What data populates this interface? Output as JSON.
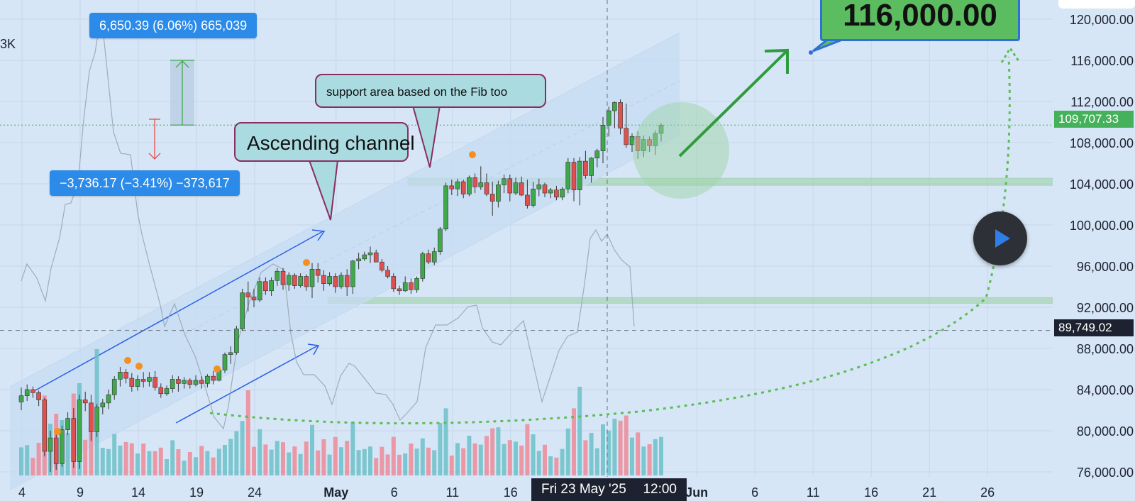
{
  "chart_data": {
    "type": "candlestick",
    "y_axis_ticks": [
      "76,000.00",
      "80,000.00",
      "84,000.00",
      "88,000.00",
      "92,000.00",
      "96,000.00",
      "100,000.00",
      "104,000.00",
      "108,000.00",
      "112,000.00",
      "116,000.00",
      "120,000.00"
    ],
    "ylim": [
      75800,
      121000
    ],
    "x_axis_ticks": [
      {
        "label": "4",
        "day": 0
      },
      {
        "label": "9",
        "day": 5
      },
      {
        "label": "14",
        "day": 10
      },
      {
        "label": "19",
        "day": 15
      },
      {
        "label": "24",
        "day": 20
      },
      {
        "label": "May",
        "day": 27,
        "bold": true
      },
      {
        "label": "6",
        "day": 32
      },
      {
        "label": "11",
        "day": 37
      },
      {
        "label": "16",
        "day": 42
      },
      {
        "label": "Jun",
        "day": 58,
        "bold": true
      },
      {
        "label": "6",
        "day": 63
      },
      {
        "label": "11",
        "day": 68
      },
      {
        "label": "16",
        "day": 73
      },
      {
        "label": "21",
        "day": 78
      },
      {
        "label": "26",
        "day": 83
      }
    ],
    "candles": [
      [
        82800,
        84200,
        82000,
        83400
      ],
      [
        83400,
        84500,
        82900,
        84000
      ],
      [
        84000,
        84300,
        83200,
        83700
      ],
      [
        83700,
        83900,
        82400,
        83000
      ],
      [
        83000,
        83200,
        77500,
        78000
      ],
      [
        78000,
        80000,
        76000,
        79300
      ],
      [
        79300,
        80200,
        76200,
        76800
      ],
      [
        76800,
        80500,
        76500,
        80100
      ],
      [
        80100,
        81800,
        79600,
        81200
      ],
      [
        81200,
        82200,
        76400,
        77000
      ],
      [
        77000,
        83500,
        76300,
        83000
      ],
      [
        83000,
        83800,
        81900,
        82700
      ],
      [
        82700,
        83500,
        79000,
        79900
      ],
      [
        79900,
        82600,
        79400,
        82300
      ],
      [
        82300,
        83100,
        81600,
        82700
      ],
      [
        82700,
        84000,
        82100,
        83500
      ],
      [
        83500,
        85300,
        83000,
        85000
      ],
      [
        85000,
        86200,
        84300,
        85700
      ],
      [
        85700,
        86000,
        84600,
        85100
      ],
      [
        85100,
        85600,
        83800,
        84300
      ],
      [
        84300,
        85400,
        83900,
        85000
      ],
      [
        85000,
        85700,
        84200,
        84800
      ],
      [
        84800,
        85700,
        84300,
        85200
      ],
      [
        85200,
        85800,
        83900,
        84200
      ],
      [
        84200,
        84600,
        83200,
        83600
      ],
      [
        83600,
        84400,
        83400,
        84100
      ],
      [
        84100,
        85400,
        83700,
        85000
      ],
      [
        85000,
        85300,
        83800,
        84600
      ],
      [
        84600,
        85200,
        84100,
        84900
      ],
      [
        84900,
        85100,
        84100,
        84500
      ],
      [
        84500,
        85400,
        84300,
        84900
      ],
      [
        84900,
        85300,
        84100,
        84600
      ],
      [
        84600,
        85500,
        84200,
        85300
      ],
      [
        85300,
        85800,
        84500,
        84900
      ],
      [
        84900,
        86000,
        84800,
        85900
      ],
      [
        85900,
        87600,
        85600,
        87400
      ],
      [
        87400,
        88200,
        86500,
        87600
      ],
      [
        87600,
        90200,
        87400,
        89900
      ],
      [
        89900,
        93800,
        89700,
        93400
      ],
      [
        93400,
        94500,
        91600,
        93000
      ],
      [
        93000,
        93800,
        92000,
        92700
      ],
      [
        92700,
        94900,
        92500,
        94500
      ],
      [
        94500,
        94900,
        93200,
        93600
      ],
      [
        93600,
        94900,
        93100,
        94600
      ],
      [
        94600,
        95800,
        94100,
        95500
      ],
      [
        95500,
        95800,
        93700,
        94200
      ],
      [
        94200,
        95400,
        93600,
        95100
      ],
      [
        95100,
        95300,
        93800,
        94100
      ],
      [
        94100,
        95300,
        93900,
        95000
      ],
      [
        95000,
        95200,
        93600,
        94000
      ],
      [
        94000,
        96300,
        92900,
        95700
      ],
      [
        95700,
        96300,
        94400,
        95100
      ],
      [
        95100,
        95600,
        93600,
        94300
      ],
      [
        94300,
        95400,
        94100,
        95000
      ],
      [
        95000,
        95300,
        93400,
        94000
      ],
      [
        94000,
        95400,
        93800,
        95100
      ],
      [
        95100,
        95700,
        93100,
        94000
      ],
      [
        94000,
        96600,
        93300,
        96500
      ],
      [
        96500,
        97300,
        95700,
        96700
      ],
      [
        96700,
        97400,
        96500,
        97100
      ],
      [
        97100,
        97900,
        96300,
        97300
      ],
      [
        97300,
        97600,
        96400,
        96400
      ],
      [
        96400,
        96700,
        95400,
        95600
      ],
      [
        95600,
        96000,
        94800,
        95000
      ],
      [
        95000,
        95300,
        93500,
        93800
      ],
      [
        93800,
        94100,
        93200,
        93600
      ],
      [
        93600,
        95000,
        93500,
        94400
      ],
      [
        94400,
        94800,
        93300,
        93700
      ],
      [
        93700,
        95000,
        93400,
        94800
      ],
      [
        94800,
        97400,
        94500,
        97200
      ],
      [
        97200,
        97600,
        96200,
        96400
      ],
      [
        96400,
        97800,
        96100,
        97400
      ],
      [
        97400,
        99800,
        97100,
        99600
      ],
      [
        99600,
        104100,
        99400,
        103800
      ],
      [
        103800,
        104400,
        102900,
        103500
      ],
      [
        103500,
        104500,
        102800,
        104200
      ],
      [
        104200,
        104400,
        102600,
        103000
      ],
      [
        103000,
        104800,
        102800,
        104600
      ],
      [
        104600,
        105000,
        103100,
        103700
      ],
      [
        103700,
        105700,
        103400,
        104100
      ],
      [
        104100,
        105000,
        102800,
        103000
      ],
      [
        103000,
        104200,
        100900,
        102300
      ],
      [
        102300,
        104300,
        101700,
        103900
      ],
      [
        103900,
        104900,
        103100,
        104500
      ],
      [
        104500,
        104900,
        102300,
        103100
      ],
      [
        103100,
        104600,
        102900,
        104100
      ],
      [
        104100,
        104700,
        102800,
        102900
      ],
      [
        102900,
        104400,
        101600,
        101900
      ],
      [
        101900,
        104200,
        101700,
        103500
      ],
      [
        103500,
        104500,
        102800,
        103900
      ],
      [
        103900,
        104100,
        102700,
        103100
      ],
      [
        103100,
        103600,
        102600,
        103400
      ],
      [
        103400,
        103800,
        102400,
        102700
      ],
      [
        102700,
        103700,
        102400,
        103500
      ],
      [
        103500,
        106500,
        103100,
        106100
      ],
      [
        106100,
        106500,
        102300,
        103400
      ],
      [
        103400,
        106600,
        101900,
        106200
      ],
      [
        106200,
        107200,
        104500,
        104800
      ],
      [
        104800,
        106600,
        104100,
        106500
      ],
      [
        106500,
        107400,
        105600,
        107200
      ],
      [
        107200,
        110500,
        106000,
        109700
      ],
      [
        109700,
        111500,
        108600,
        111100
      ],
      [
        111100,
        112000,
        109400,
        111900
      ],
      [
        111900,
        112200,
        108800,
        109400
      ],
      [
        109400,
        111800,
        107500,
        107800
      ],
      [
        107800,
        108900,
        107100,
        108600
      ],
      [
        108600,
        109100,
        106400,
        107200
      ],
      [
        107200,
        108700,
        106600,
        108300
      ],
      [
        108300,
        108600,
        107100,
        107700
      ],
      [
        107700,
        109200,
        106800,
        108900
      ],
      [
        108900,
        109900,
        108100,
        109700
      ]
    ],
    "volume_colors": [
      "up",
      "down"
    ],
    "horizontal_levels": {
      "current": 109707.33,
      "crosshair": 89749.02,
      "support_upper": 104400,
      "support_lower": 92800
    },
    "target_price": 116000,
    "price_tags": {
      "current": "109,707.33",
      "crosshair": "89,749.02"
    },
    "crosshair_date": "Fri 23 May '25",
    "crosshair_time": "12:00",
    "measurements": [
      {
        "label": "6,650.39 (6.06%) 665,039"
      },
      {
        "label": "−3,736.17 (−3.41%) −373,617"
      }
    ],
    "annotations": {
      "ascending_channel": "Ascending channel",
      "fib_support": "support area based on the Fib too",
      "target": "116,000.00"
    },
    "volume_axis_fragment": "3K",
    "colors": {
      "up": "#3ea84a",
      "down": "#e0504e",
      "vol_up": "#6cc1c8",
      "vol_down": "#ef8a98",
      "background": "#d6e6f6",
      "channel_line": "#2a5fe8",
      "target_arrow": "#2e9c3c",
      "projection": "#5cbd55"
    }
  }
}
